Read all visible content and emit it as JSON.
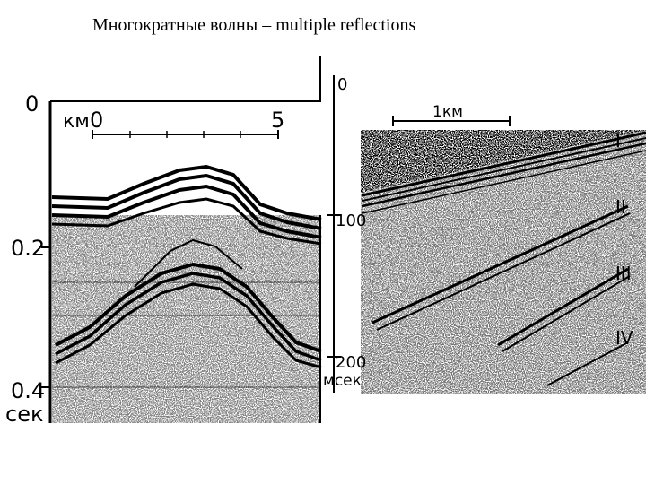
{
  "slide": {
    "title": "Многократные волны – multiple reflections"
  },
  "left_section": {
    "time_ticks": [
      "0",
      "0.2",
      "0.4"
    ],
    "time_unit": "сек",
    "distance_unit": "км",
    "distance_start": "0",
    "distance_end": "5"
  },
  "right_section": {
    "time_ticks": [
      "0",
      "100",
      "200"
    ],
    "time_unit": "мсек",
    "scale_label": "1км",
    "reflector_labels": [
      "I",
      "II",
      "III",
      "IV"
    ]
  },
  "colors": {
    "ink": "#000000",
    "background": "#ffffff"
  }
}
